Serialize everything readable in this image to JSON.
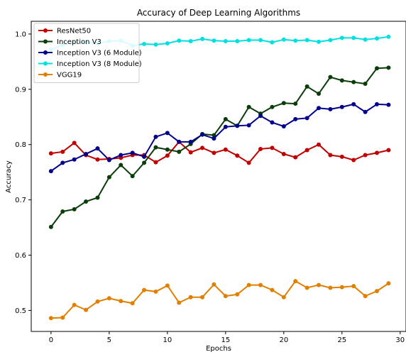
{
  "chart_data": {
    "type": "line",
    "title": "Accuracy of Deep Learning Algorithms",
    "xlabel": "Epochs",
    "ylabel": "Accuracy",
    "xlim": [
      -1.7,
      30.5
    ],
    "ylim": [
      0.462,
      1.023
    ],
    "xticks": [
      "0",
      "5",
      "10",
      "15",
      "20",
      "25",
      "30"
    ],
    "yticks": [
      "0.5",
      "0.6",
      "0.7",
      "0.8",
      "0.9",
      "1.0"
    ],
    "grid": false,
    "legend_position": "top-left",
    "x": [
      0,
      1,
      2,
      3,
      4,
      5,
      6,
      7,
      8,
      9,
      10,
      11,
      12,
      13,
      14,
      15,
      16,
      17,
      18,
      19,
      20,
      21,
      22,
      23,
      24,
      25,
      26,
      27,
      28,
      29
    ],
    "series": [
      {
        "name": "ResNet50",
        "color": "#c00000",
        "values": [
          0.784,
          0.787,
          0.803,
          0.781,
          0.773,
          0.774,
          0.776,
          0.781,
          0.781,
          0.768,
          0.78,
          0.805,
          0.786,
          0.794,
          0.785,
          0.791,
          0.78,
          0.767,
          0.792,
          0.794,
          0.783,
          0.777,
          0.79,
          0.8,
          0.781,
          0.778,
          0.772,
          0.781,
          0.785,
          0.79
        ]
      },
      {
        "name": "Inception V3",
        "color": "#0a3d0a",
        "values": [
          0.651,
          0.679,
          0.683,
          0.697,
          0.704,
          0.741,
          0.763,
          0.743,
          0.767,
          0.795,
          0.791,
          0.787,
          0.801,
          0.819,
          0.817,
          0.846,
          0.834,
          0.868,
          0.856,
          0.868,
          0.875,
          0.874,
          0.905,
          0.892,
          0.922,
          0.916,
          0.913,
          0.91,
          0.938,
          0.939
        ]
      },
      {
        "name": "Inception V3 (6 Module)",
        "color": "#00008b",
        "values": [
          0.752,
          0.767,
          0.773,
          0.783,
          0.793,
          0.772,
          0.781,
          0.785,
          0.778,
          0.814,
          0.821,
          0.805,
          0.805,
          0.818,
          0.811,
          0.832,
          0.834,
          0.835,
          0.852,
          0.84,
          0.833,
          0.846,
          0.848,
          0.866,
          0.864,
          0.868,
          0.873,
          0.859,
          0.873,
          0.872
        ]
      },
      {
        "name": "Inception V3 (8 Module)",
        "color": "#00e0e0",
        "values": [
          0.972,
          0.98,
          0.985,
          0.985,
          0.983,
          0.987,
          0.988,
          0.979,
          0.982,
          0.981,
          0.983,
          0.988,
          0.987,
          0.991,
          0.988,
          0.987,
          0.987,
          0.989,
          0.989,
          0.985,
          0.99,
          0.988,
          0.989,
          0.986,
          0.989,
          0.993,
          0.993,
          0.99,
          0.992,
          0.995
        ]
      },
      {
        "name": "VGG19",
        "color": "#e08000",
        "values": [
          0.486,
          0.487,
          0.51,
          0.501,
          0.516,
          0.522,
          0.517,
          0.513,
          0.537,
          0.534,
          0.545,
          0.514,
          0.524,
          0.524,
          0.547,
          0.526,
          0.529,
          0.546,
          0.546,
          0.537,
          0.524,
          0.553,
          0.541,
          0.546,
          0.541,
          0.542,
          0.544,
          0.526,
          0.535,
          0.549
        ]
      }
    ]
  }
}
